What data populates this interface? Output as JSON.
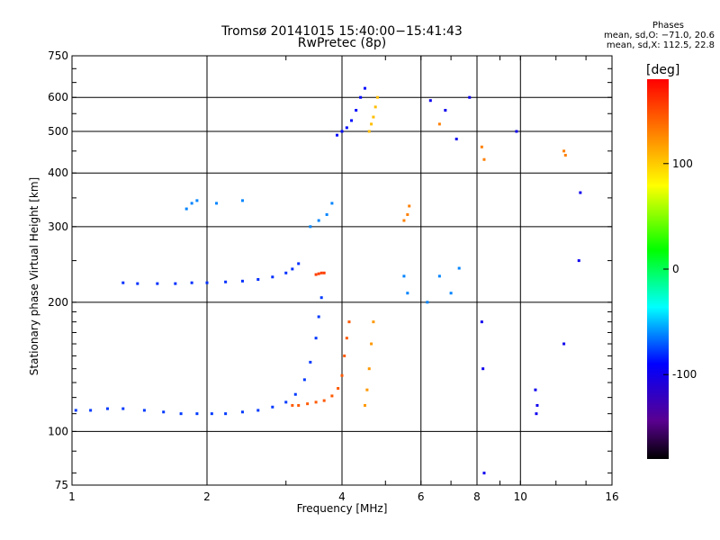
{
  "chart_data": {
    "type": "scatter",
    "title": "Tromsø 20141015 15:40:00−15:41:43",
    "subtitle": "RwPretec (8p)",
    "xlabel": "Frequency [MHz]",
    "ylabel": "Stationary phase Virtual Height [km]",
    "x_scale": "log",
    "y_scale": "log",
    "xlim": [
      1,
      16
    ],
    "ylim": [
      75,
      750
    ],
    "x_ticks": [
      1,
      2,
      4,
      6,
      8,
      10,
      16
    ],
    "x_tick_labels": [
      "1",
      "2",
      "4",
      "6",
      "8",
      "10",
      "16"
    ],
    "y_ticks": [
      75,
      100,
      200,
      300,
      400,
      500,
      600,
      750
    ],
    "y_tick_labels": [
      "75",
      "100",
      "200",
      "300",
      "400",
      "500",
      "600",
      "750"
    ],
    "grid": true,
    "colorbar": {
      "label": "[deg]",
      "min": -180,
      "max": 180,
      "ticks": [
        100,
        0,
        -100
      ],
      "tick_labels": [
        "100",
        "0",
        "-100"
      ],
      "colormap": "rainbow"
    },
    "stats": {
      "heading": "Phases",
      "line_o": "mean, sd,O: −71.0, 20.6",
      "line_x": "mean, sd,X: 112.5, 22.8"
    },
    "traces": [
      {
        "name_hint": "",
        "phase": -78,
        "points": [
          [
            1.02,
            112
          ],
          [
            1.1,
            112
          ],
          [
            1.2,
            113
          ],
          [
            1.3,
            113
          ],
          [
            1.45,
            112
          ],
          [
            1.6,
            111
          ],
          [
            1.75,
            110
          ],
          [
            1.9,
            110
          ],
          [
            2.05,
            110
          ],
          [
            2.2,
            110
          ],
          [
            2.4,
            111
          ],
          [
            2.6,
            112
          ],
          [
            2.8,
            114
          ],
          [
            3.0,
            117
          ],
          [
            3.15,
            122
          ],
          [
            3.3,
            132
          ],
          [
            3.4,
            145
          ],
          [
            3.5,
            165
          ],
          [
            3.55,
            185
          ],
          [
            3.6,
            205
          ]
        ]
      },
      {
        "name_hint": "",
        "phase": -80,
        "points": [
          [
            1.3,
            222
          ],
          [
            1.4,
            221
          ],
          [
            1.55,
            221
          ],
          [
            1.7,
            221
          ],
          [
            1.85,
            222
          ],
          [
            2.0,
            222
          ],
          [
            2.2,
            223
          ],
          [
            2.4,
            224
          ],
          [
            2.6,
            226
          ],
          [
            2.8,
            229
          ],
          [
            3.0,
            234
          ],
          [
            3.1,
            239
          ],
          [
            3.2,
            246
          ]
        ]
      },
      {
        "name_hint": "",
        "phase": 145,
        "points": [
          [
            3.1,
            115
          ],
          [
            3.2,
            115
          ],
          [
            3.35,
            116
          ],
          [
            3.5,
            117
          ],
          [
            3.65,
            118
          ],
          [
            3.8,
            121
          ],
          [
            3.92,
            126
          ],
          [
            4.0,
            135
          ],
          [
            4.05,
            150
          ],
          [
            4.1,
            165
          ],
          [
            4.15,
            180
          ]
        ]
      },
      {
        "name_hint": "",
        "phase": 120,
        "points": [
          [
            4.5,
            115
          ],
          [
            4.55,
            125
          ],
          [
            4.6,
            140
          ],
          [
            4.65,
            160
          ],
          [
            4.7,
            180
          ]
        ]
      },
      {
        "name_hint": "",
        "phase": 155,
        "points": [
          [
            3.5,
            232
          ],
          [
            3.55,
            233
          ],
          [
            3.6,
            234
          ],
          [
            3.65,
            234
          ]
        ]
      },
      {
        "name_hint": "",
        "phase": -88,
        "points": [
          [
            3.9,
            490
          ],
          [
            4.0,
            500
          ],
          [
            4.1,
            510
          ],
          [
            4.2,
            530
          ],
          [
            4.3,
            560
          ],
          [
            4.4,
            600
          ],
          [
            4.5,
            630
          ]
        ]
      },
      {
        "name_hint": "",
        "phase": 105,
        "points": [
          [
            4.6,
            500
          ],
          [
            4.65,
            520
          ],
          [
            4.7,
            540
          ],
          [
            4.75,
            570
          ],
          [
            4.8,
            600
          ]
        ]
      },
      {
        "name_hint": "",
        "phase": -62,
        "points": [
          [
            1.8,
            330
          ],
          [
            1.85,
            340
          ],
          [
            1.9,
            345
          ],
          [
            2.1,
            340
          ],
          [
            2.4,
            345
          ],
          [
            3.4,
            300
          ],
          [
            3.55,
            310
          ],
          [
            3.7,
            320
          ],
          [
            3.8,
            340
          ],
          [
            5.5,
            230
          ],
          [
            5.6,
            210
          ],
          [
            6.2,
            200
          ],
          [
            6.6,
            230
          ],
          [
            7.0,
            210
          ],
          [
            7.3,
            240
          ]
        ]
      },
      {
        "name_hint": "",
        "phase": 130,
        "points": [
          [
            5.5,
            310
          ],
          [
            5.6,
            320
          ],
          [
            5.65,
            335
          ],
          [
            6.6,
            520
          ],
          [
            8.2,
            460
          ],
          [
            8.3,
            430
          ],
          [
            12.5,
            450
          ],
          [
            12.6,
            440
          ]
        ]
      },
      {
        "name_hint": "",
        "phase": -98,
        "points": [
          [
            6.3,
            590
          ],
          [
            6.8,
            560
          ],
          [
            7.2,
            480
          ],
          [
            7.7,
            600
          ],
          [
            8.2,
            180
          ],
          [
            8.25,
            140
          ],
          [
            10.8,
            125
          ],
          [
            10.9,
            115
          ],
          [
            10.85,
            110
          ],
          [
            13.5,
            250
          ],
          [
            13.6,
            360
          ],
          [
            12.5,
            160
          ],
          [
            8.3,
            80
          ],
          [
            9.8,
            500
          ]
        ]
      }
    ]
  }
}
